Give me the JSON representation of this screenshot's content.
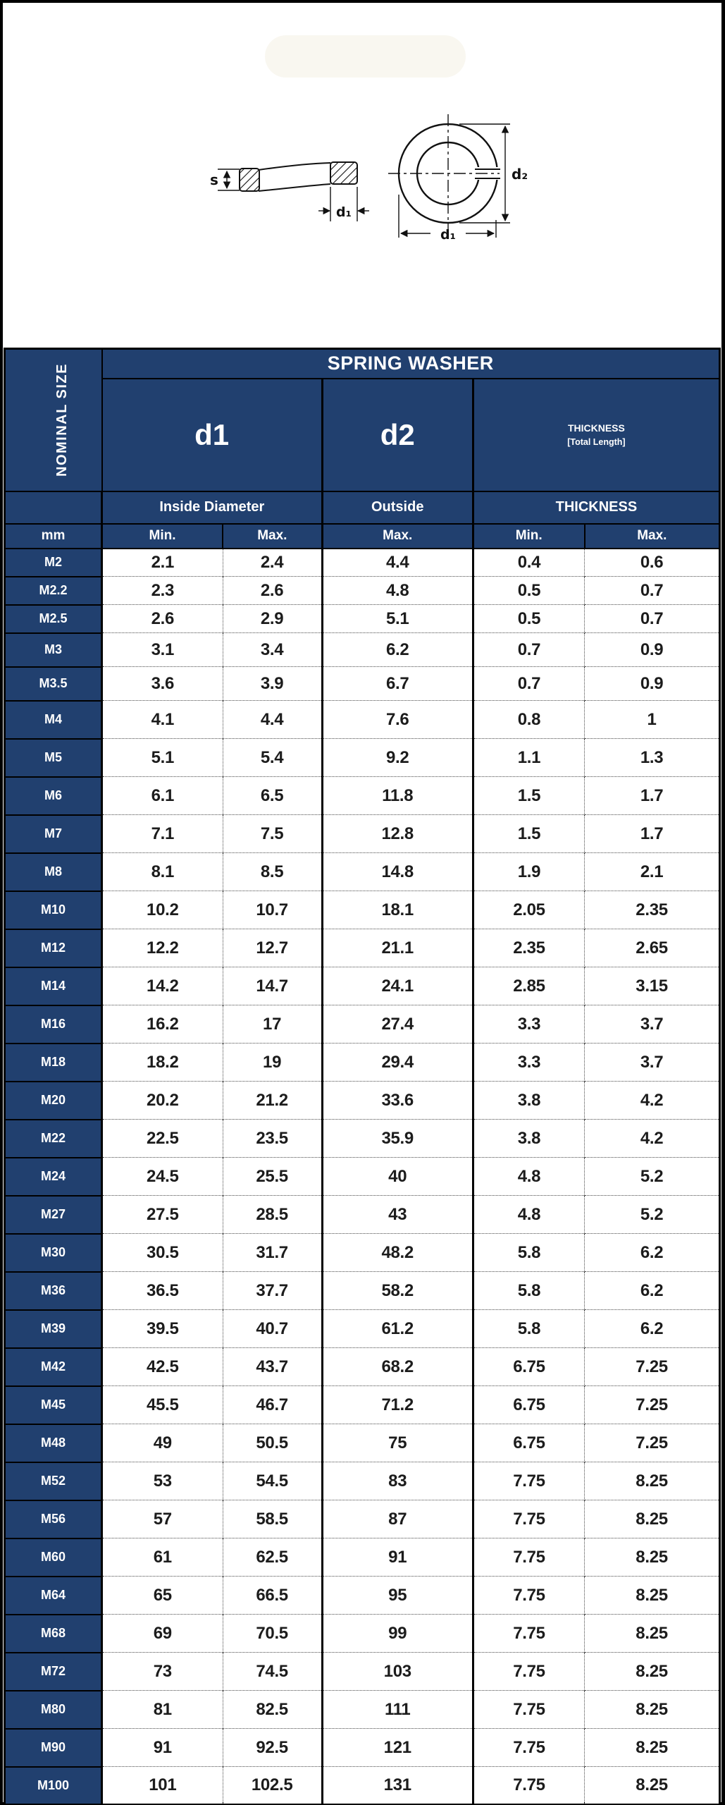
{
  "colors": {
    "header_navy": "#21406f",
    "title_gold": "#f9d35e",
    "grid_black": "#000000",
    "dotted_gray": "#4a4a4a"
  },
  "diagram": {
    "side_view": {
      "thickness_label": "s",
      "inner_diameter_label": "d₁"
    },
    "front_view": {
      "outer_diameter_label": "d₂",
      "inner_diameter_label": "d₁"
    }
  },
  "table": {
    "title": "SPRING WASHER",
    "corner_label": "NOMINAL SIZE",
    "col_groups": [
      {
        "label": "d1"
      },
      {
        "label": "d2"
      },
      {
        "label": "THICKNESS",
        "sub": "[Total Length]"
      }
    ],
    "group_row": [
      "Inside Diameter",
      "Outside",
      "THICKNESS"
    ],
    "unit_row": [
      "mm",
      "Min.",
      "Max.",
      "Max.",
      "Min.",
      "Max."
    ],
    "rows": [
      [
        "M2",
        "2.1",
        "2.4",
        "4.4",
        "0.4",
        "0.6"
      ],
      [
        "M2.2",
        "2.3",
        "2.6",
        "4.8",
        "0.5",
        "0.7"
      ],
      [
        "M2.5",
        "2.6",
        "2.9",
        "5.1",
        "0.5",
        "0.7"
      ],
      [
        "M3",
        "3.1",
        "3.4",
        "6.2",
        "0.7",
        "0.9"
      ],
      [
        "M3.5",
        "3.6",
        "3.9",
        "6.7",
        "0.7",
        "0.9"
      ],
      [
        "M4",
        "4.1",
        "4.4",
        "7.6",
        "0.8",
        "1"
      ],
      [
        "M5",
        "5.1",
        "5.4",
        "9.2",
        "1.1",
        "1.3"
      ],
      [
        "M6",
        "6.1",
        "6.5",
        "11.8",
        "1.5",
        "1.7"
      ],
      [
        "M7",
        "7.1",
        "7.5",
        "12.8",
        "1.5",
        "1.7"
      ],
      [
        "M8",
        "8.1",
        "8.5",
        "14.8",
        "1.9",
        "2.1"
      ],
      [
        "M10",
        "10.2",
        "10.7",
        "18.1",
        "2.05",
        "2.35"
      ],
      [
        "M12",
        "12.2",
        "12.7",
        "21.1",
        "2.35",
        "2.65"
      ],
      [
        "M14",
        "14.2",
        "14.7",
        "24.1",
        "2.85",
        "3.15"
      ],
      [
        "M16",
        "16.2",
        "17",
        "27.4",
        "3.3",
        "3.7"
      ],
      [
        "M18",
        "18.2",
        "19",
        "29.4",
        "3.3",
        "3.7"
      ],
      [
        "M20",
        "20.2",
        "21.2",
        "33.6",
        "3.8",
        "4.2"
      ],
      [
        "M22",
        "22.5",
        "23.5",
        "35.9",
        "3.8",
        "4.2"
      ],
      [
        "M24",
        "24.5",
        "25.5",
        "40",
        "4.8",
        "5.2"
      ],
      [
        "M27",
        "27.5",
        "28.5",
        "43",
        "4.8",
        "5.2"
      ],
      [
        "M30",
        "30.5",
        "31.7",
        "48.2",
        "5.8",
        "6.2"
      ],
      [
        "M36",
        "36.5",
        "37.7",
        "58.2",
        "5.8",
        "6.2"
      ],
      [
        "M39",
        "39.5",
        "40.7",
        "61.2",
        "5.8",
        "6.2"
      ],
      [
        "M42",
        "42.5",
        "43.7",
        "68.2",
        "6.75",
        "7.25"
      ],
      [
        "M45",
        "45.5",
        "46.7",
        "71.2",
        "6.75",
        "7.25"
      ],
      [
        "M48",
        "49",
        "50.5",
        "75",
        "6.75",
        "7.25"
      ],
      [
        "M52",
        "53",
        "54.5",
        "83",
        "7.75",
        "8.25"
      ],
      [
        "M56",
        "57",
        "58.5",
        "87",
        "7.75",
        "8.25"
      ],
      [
        "M60",
        "61",
        "62.5",
        "91",
        "7.75",
        "8.25"
      ],
      [
        "M64",
        "65",
        "66.5",
        "95",
        "7.75",
        "8.25"
      ],
      [
        "M68",
        "69",
        "70.5",
        "99",
        "7.75",
        "8.25"
      ],
      [
        "M72",
        "73",
        "74.5",
        "103",
        "7.75",
        "8.25"
      ],
      [
        "M80",
        "81",
        "82.5",
        "111",
        "7.75",
        "8.25"
      ],
      [
        "M90",
        "91",
        "92.5",
        "121",
        "7.75",
        "8.25"
      ],
      [
        "M100",
        "101",
        "102.5",
        "131",
        "7.75",
        "8.25"
      ]
    ]
  }
}
